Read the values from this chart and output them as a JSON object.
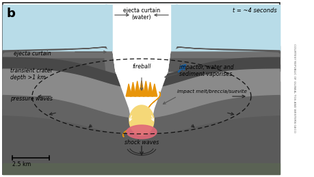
{
  "bg_color": "#ffffff",
  "water_color": "#b8dce8",
  "dark_rock1": "#5a5a5a",
  "dark_rock2": "#707070",
  "mid_rock": "#8a8a8a",
  "light_rock": "#9a9a9a",
  "green_tint": "#6a7a60",
  "fireball_orange": "#e8950a",
  "fireball_yellow": "#f5d878",
  "fireball_pink": "#e06878",
  "white": "#ffffff",
  "border_color": "#222222",
  "dashed_color": "#222222",
  "arrow_color": "#444444",
  "blue_arrow": "#1a5fa0",
  "title_b": "b",
  "time_label": "t = ~4 seconds",
  "credit": "COURTESY REPUBLIC OF GUINEA, TGS AND WESTERN GECO",
  "labels": {
    "ejecta_curtain_water": "ejecta curtain\n(water)",
    "ejecta_curtain": "ejecta curtain",
    "fireball": "fireball",
    "transient_crater": "transient crater\ndepth >1 km",
    "impactor": "impactor, water and\nsediment vaporises",
    "impact_melt": "impact melt/breccia/suevite",
    "pressure_waves": "pressure waves",
    "shock_waves": "shock waves",
    "scale": "2.5 km"
  }
}
